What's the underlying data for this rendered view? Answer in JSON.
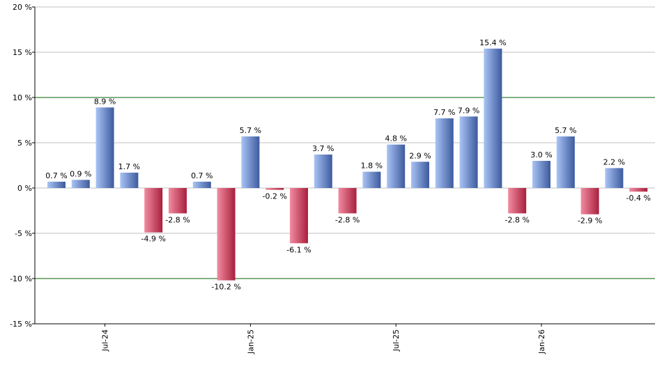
{
  "chart_data": {
    "type": "bar",
    "title": "",
    "xlabel": "",
    "ylabel": "",
    "ylim": [
      -15,
      20
    ],
    "y_ticks": [
      20,
      15,
      10,
      5,
      0,
      -5,
      -10,
      -15
    ],
    "y_tick_labels": [
      "20 %",
      "15 %",
      "10 %",
      "5 %",
      "0 %",
      "-5 %",
      "-10 %",
      "-15 %"
    ],
    "highlight_lines": [
      10,
      -10
    ],
    "x_tick_labels": [
      {
        "label": "Jul-24",
        "index": 2
      },
      {
        "label": "Jan-25",
        "index": 8
      },
      {
        "label": "Jul-25",
        "index": 14
      },
      {
        "label": "Jan-26",
        "index": 20
      }
    ],
    "values": [
      0.7,
      0.9,
      8.9,
      1.7,
      -4.9,
      -2.8,
      0.7,
      -10.2,
      5.7,
      -0.2,
      -6.1,
      3.7,
      -2.8,
      1.8,
      4.8,
      2.9,
      7.7,
      7.9,
      15.4,
      -2.8,
      3.0,
      5.7,
      -2.9,
      2.2,
      -0.4
    ],
    "value_labels": [
      "0.7 %",
      "0.9 %",
      "8.9 %",
      "1.7 %",
      "-4.9 %",
      "-2.8 %",
      "0.7 %",
      "-10.2 %",
      "5.7 %",
      "-0.2 %",
      "-6.1 %",
      "3.7 %",
      "-2.8 %",
      "1.8 %",
      "4.8 %",
      "2.9 %",
      "7.7 %",
      "7.9 %",
      "15.4 %",
      "-2.8 %",
      "3.0 %",
      "5.7 %",
      "-2.9 %",
      "2.2 %",
      "-0.4 %"
    ],
    "colors": {
      "positive_light": "#a9c4f5",
      "positive_dark": "#3d5a9e",
      "negative_light": "#f28ca0",
      "negative_dark": "#a8203e",
      "grid": "#c0c0c0",
      "highlight_line": "#006400",
      "axis": "#000000"
    },
    "grid": true
  }
}
